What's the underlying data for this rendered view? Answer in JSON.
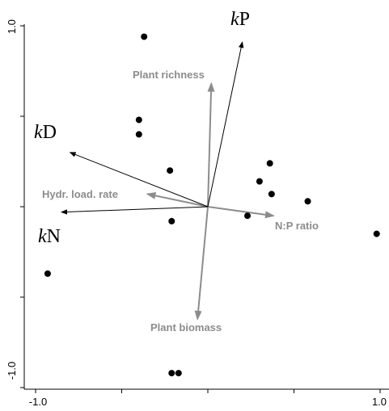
{
  "chart_data": {
    "type": "scatter",
    "subtype": "ordination-biplot",
    "title": "",
    "xlabel": "",
    "ylabel": "",
    "xlim": [
      -1.0,
      1.0
    ],
    "ylim": [
      -1.0,
      1.0
    ],
    "x_tick_labels": [
      {
        "value": -1.0,
        "label": "-1.0"
      },
      {
        "value": 1.0,
        "label": "1.0"
      }
    ],
    "y_tick_labels": [
      {
        "value": 1.0,
        "label": "1.0"
      },
      {
        "value": -1.0,
        "label": "-1.0"
      }
    ],
    "x_ticks": [
      -1.0,
      -0.5,
      0.0,
      0.5,
      1.0
    ],
    "y_ticks": [
      -1.0,
      -0.5,
      0.0,
      0.5,
      1.0
    ],
    "grid": false,
    "colors": {
      "points": "#000000",
      "response_arrows": "#000000",
      "environment_arrows": "#8c8c8c"
    },
    "points": [
      {
        "x": -0.37,
        "y": 0.94
      },
      {
        "x": -0.4,
        "y": 0.48
      },
      {
        "x": -0.4,
        "y": 0.4
      },
      {
        "x": -0.22,
        "y": 0.2
      },
      {
        "x": -0.21,
        "y": -0.08
      },
      {
        "x": 0.23,
        "y": -0.05
      },
      {
        "x": 0.3,
        "y": 0.14
      },
      {
        "x": 0.36,
        "y": 0.24
      },
      {
        "x": 0.37,
        "y": 0.07
      },
      {
        "x": 0.58,
        "y": 0.03
      },
      {
        "x": 0.98,
        "y": -0.15
      },
      {
        "x": -0.93,
        "y": -0.37
      },
      {
        "x": -0.21,
        "y": -0.92
      },
      {
        "x": -0.17,
        "y": -0.92
      }
    ],
    "response_vectors": [
      {
        "prefix": "k",
        "suffix": "P",
        "x": 0.2,
        "y": 0.91
      },
      {
        "prefix": "k",
        "suffix": "D",
        "x": -0.8,
        "y": 0.3
      },
      {
        "prefix": "k",
        "suffix": "N",
        "x": -0.85,
        "y": -0.03
      }
    ],
    "environmental_vectors": [
      {
        "label": "Plant richness",
        "x": 0.02,
        "y": 0.68
      },
      {
        "label": "Hydr. load. rate",
        "x": -0.35,
        "y": 0.07
      },
      {
        "label": "N:P ratio",
        "x": 0.38,
        "y": -0.05
      },
      {
        "label": "Plant biomass",
        "x": -0.06,
        "y": -0.62
      }
    ]
  }
}
